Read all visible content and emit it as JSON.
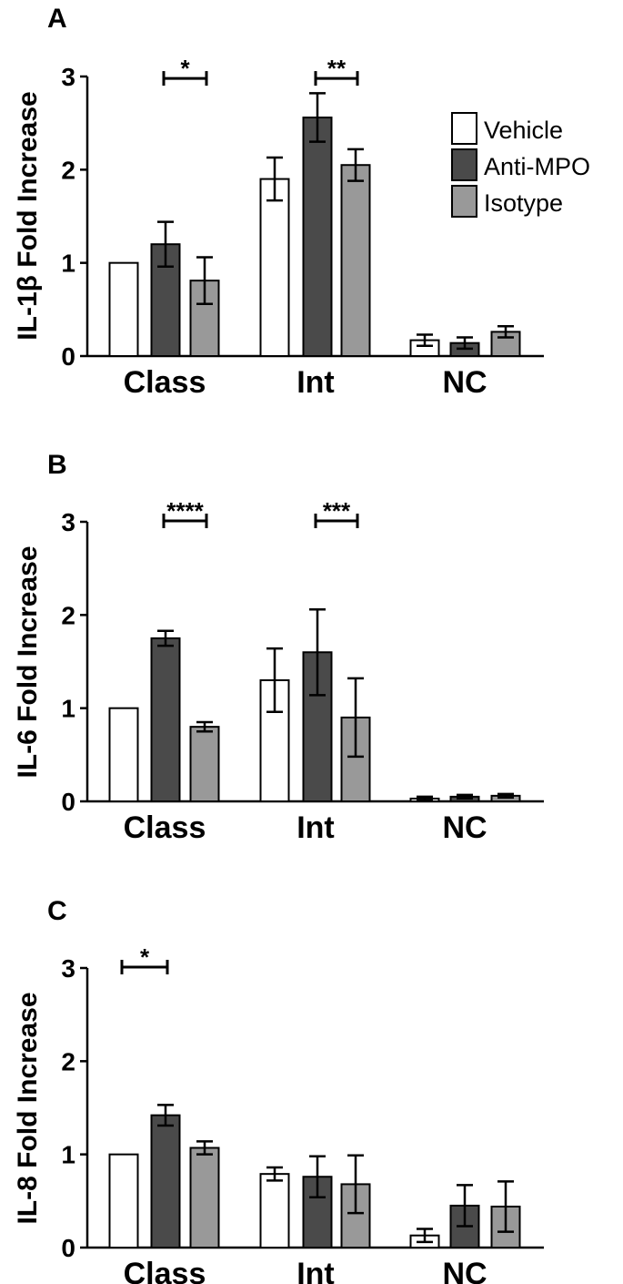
{
  "chart_data": [
    {
      "type": "bar",
      "panel": "A",
      "ylabel": "IL-1β Fold Increase",
      "ylim": [
        0,
        3
      ],
      "yticks": [
        0,
        1,
        2,
        3
      ],
      "categories": [
        "Class",
        "Int",
        "NC"
      ],
      "series": [
        {
          "name": "Vehicle",
          "color": "#ffffff",
          "values": [
            1.0,
            1.9,
            0.17
          ],
          "errors": [
            0,
            0.23,
            0.06
          ]
        },
        {
          "name": "Anti-MPO",
          "color": "#4a4a4a",
          "values": [
            1.2,
            2.56,
            0.14
          ],
          "errors": [
            0.24,
            0.26,
            0.06
          ]
        },
        {
          "name": "Isotype",
          "color": "#999999",
          "values": [
            0.81,
            2.05,
            0.26
          ],
          "errors": [
            0.25,
            0.17,
            0.06
          ]
        }
      ],
      "significance": [
        {
          "category": "Class",
          "from_series": 1,
          "to_series": 2,
          "y": 2.97,
          "label": "*"
        },
        {
          "category": "Int",
          "from_series": 1,
          "to_series": 2,
          "y": 2.97,
          "label": "**"
        }
      ],
      "legend": {
        "show": true,
        "position": "top-right"
      }
    },
    {
      "type": "bar",
      "panel": "B",
      "ylabel": "IL-6 Fold Increase",
      "ylim": [
        0,
        3
      ],
      "yticks": [
        0,
        1,
        2,
        3
      ],
      "categories": [
        "Class",
        "Int",
        "NC"
      ],
      "series": [
        {
          "name": "Vehicle",
          "color": "#ffffff",
          "values": [
            1.0,
            1.3,
            0.03
          ],
          "errors": [
            0,
            0.34,
            0.02
          ]
        },
        {
          "name": "Anti-MPO",
          "color": "#4a4a4a",
          "values": [
            1.75,
            1.6,
            0.05
          ],
          "errors": [
            0.08,
            0.46,
            0.02
          ]
        },
        {
          "name": "Isotype",
          "color": "#999999",
          "values": [
            0.8,
            0.9,
            0.06
          ],
          "errors": [
            0.05,
            0.42,
            0.02
          ]
        }
      ],
      "significance": [
        {
          "category": "Class",
          "from_series": 1,
          "to_series": 2,
          "y": 3.0,
          "label": "****"
        },
        {
          "category": "Int",
          "from_series": 1,
          "to_series": 2,
          "y": 3.0,
          "label": "***"
        }
      ],
      "legend": {
        "show": false
      }
    },
    {
      "type": "bar",
      "panel": "C",
      "ylabel": "IL-8 Fold Increase",
      "ylim": [
        0,
        3
      ],
      "yticks": [
        0,
        1,
        2,
        3
      ],
      "categories": [
        "Class",
        "Int",
        "NC"
      ],
      "series": [
        {
          "name": "Vehicle",
          "color": "#ffffff",
          "values": [
            1.0,
            0.79,
            0.13
          ],
          "errors": [
            0,
            0.07,
            0.07
          ]
        },
        {
          "name": "Anti-MPO",
          "color": "#4a4a4a",
          "values": [
            1.42,
            0.76,
            0.45
          ],
          "errors": [
            0.11,
            0.22,
            0.22
          ]
        },
        {
          "name": "Isotype",
          "color": "#999999",
          "values": [
            1.07,
            0.68,
            0.44
          ],
          "errors": [
            0.07,
            0.31,
            0.27
          ]
        }
      ],
      "significance": [
        {
          "category": "Class",
          "from_series": 0,
          "to_series": 1,
          "y": 3.0,
          "label": "*"
        }
      ],
      "legend": {
        "show": false
      }
    }
  ]
}
